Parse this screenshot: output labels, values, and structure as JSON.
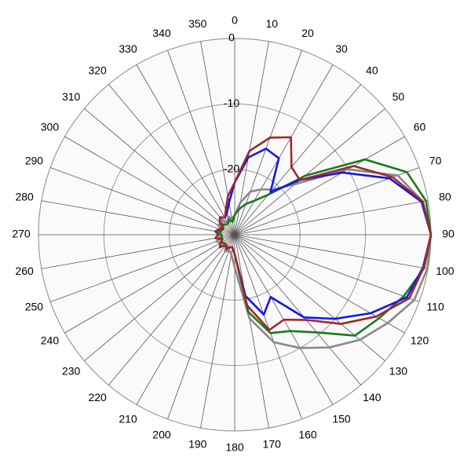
{
  "chart_data": {
    "type": "polar",
    "rlim": [
      -30,
      0
    ],
    "rticks": [
      0,
      -10,
      -20
    ],
    "thetaticks": [
      0,
      10,
      20,
      30,
      40,
      50,
      60,
      70,
      80,
      90,
      100,
      110,
      120,
      130,
      140,
      150,
      160,
      170,
      180,
      190,
      200,
      210,
      220,
      230,
      240,
      250,
      260,
      270,
      280,
      290,
      300,
      310,
      320,
      330,
      340,
      350
    ],
    "theta": [
      0,
      10,
      20,
      30,
      40,
      50,
      60,
      70,
      80,
      90,
      100,
      110,
      120,
      130,
      140,
      150,
      160,
      170,
      180,
      190,
      200,
      210,
      220,
      230,
      240,
      250,
      260,
      270,
      280,
      290,
      300,
      310,
      320,
      330,
      340,
      350
    ],
    "grid": true,
    "series": [
      {
        "color": "#888888",
        "values": [
          -27,
          -25,
          -23,
          -22,
          -21,
          -18,
          -10,
          -3.5,
          -0.8,
          0,
          -0.1,
          -0.8,
          -3,
          -5,
          -7.5,
          -10,
          -12.5,
          -17,
          -25,
          -27,
          -27.5,
          -27,
          -28,
          -27,
          -27.5,
          -27,
          -28,
          -27.5,
          -27,
          -28,
          -27,
          -27.5,
          -27,
          -28,
          -27,
          -27.5
        ]
      },
      {
        "color": "#1a7a1a",
        "values": [
          -27,
          -26,
          -25,
          -24,
          -22,
          -16,
          -7,
          -2,
          -0.3,
          0,
          -0.6,
          -2.5,
          -4.5,
          -6,
          -10.5,
          -13,
          -14,
          -18,
          -27,
          -28,
          -28,
          -27.5,
          -28,
          -28,
          -27.5,
          -28,
          -28,
          -28,
          -27.5,
          -28,
          -28,
          -27.5,
          -28,
          -28,
          -27.5,
          -28
        ]
      },
      {
        "color": "#1414f0",
        "values": [
          -22,
          -18,
          -16,
          -16.5,
          -21.5,
          -17,
          -11,
          -4.8,
          -1,
          0,
          -0.8,
          -2,
          -6,
          -10,
          -13.5,
          -19,
          -17,
          -20.5,
          -27,
          -28,
          -28,
          -27.5,
          -28,
          -27,
          -27.5,
          -28,
          -27,
          -27.5,
          -27,
          -27.5,
          -28,
          -27,
          -26.5,
          -27,
          -26.5,
          -25
        ]
      },
      {
        "color": "#a02828",
        "values": [
          -22,
          -17,
          -14.2,
          -12.8,
          -16.5,
          -17,
          -9,
          -4.3,
          -0.8,
          0,
          -0.7,
          -1.6,
          -5,
          -8.8,
          -13,
          -15,
          -14.5,
          -19,
          -27,
          -28,
          -28,
          -27.5,
          -28,
          -27,
          -27.5,
          -28,
          -27,
          -27.5,
          -27,
          -27.5,
          -28,
          -27,
          -26.5,
          -27,
          -26,
          -24
        ]
      }
    ]
  }
}
